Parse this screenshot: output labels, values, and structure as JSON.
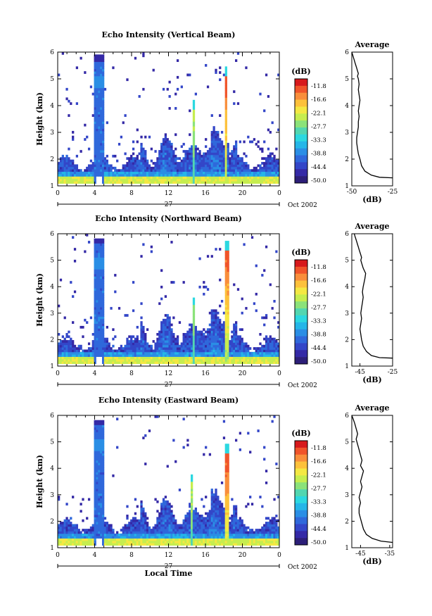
{
  "colorbar": {
    "unit": "(dB)",
    "labels": [
      "-11.8",
      "-16.6",
      "-22.1",
      "-27.7",
      "-33.3",
      "-38.8",
      "-44.4",
      "-50.0"
    ],
    "colors": [
      "#d7191c",
      "#f0542a",
      "#f98e3b",
      "#fdc13b",
      "#f4e843",
      "#c6ed4f",
      "#8be27a",
      "#52d6b0",
      "#2cd8e0",
      "#24b6e8",
      "#2a8ee5",
      "#2f68db",
      "#3346c8",
      "#3429a6",
      "#2c1e78"
    ]
  },
  "chart_data": [
    {
      "type": "heatmap",
      "title": "Echo Intensity (Vertical Beam)",
      "ylabel": "Height (km)",
      "xlabel": "",
      "xticks": [
        "0",
        "4",
        "8",
        "12",
        "16",
        "20",
        "0"
      ],
      "xlim": [
        0,
        24
      ],
      "yticks": [
        "1",
        "2",
        "3",
        "4",
        "5",
        "6"
      ],
      "ylim": [
        1,
        6
      ],
      "date_day": "27",
      "date_label": "Oct 2002",
      "colorbar_range": [
        -50.0,
        -11.8
      ]
    },
    {
      "type": "line",
      "title": "Average",
      "xlabel": "(dB)",
      "xticks": [
        "-50",
        "-25"
      ],
      "xlim": [
        -50,
        -25
      ],
      "yticks": [
        "1",
        "2",
        "3",
        "4",
        "5",
        "6"
      ],
      "ylim": [
        1,
        6
      ],
      "x": [
        -25,
        -33,
        -38,
        -42,
        -44,
        -45,
        -46,
        -46.5,
        -47,
        -47,
        -46.5,
        -46,
        -46,
        -45.5,
        -46,
        -45.5,
        -45,
        -45.5,
        -46,
        -45.5,
        -46,
        -46.5,
        -46,
        -46.5,
        -47,
        -47.5,
        -48,
        -48.5,
        -49,
        -49.5,
        -50
      ],
      "y": [
        1.3,
        1.32,
        1.4,
        1.55,
        1.75,
        2.0,
        2.2,
        2.4,
        2.6,
        2.8,
        3.0,
        3.2,
        3.4,
        3.6,
        3.8,
        4.0,
        4.2,
        4.4,
        4.6,
        4.8,
        5.0,
        5.1,
        5.2,
        5.3,
        5.4,
        5.5,
        5.6,
        5.7,
        5.8,
        5.9,
        6.0
      ]
    },
    {
      "type": "heatmap",
      "title": "Echo Intensity (Northward Beam)",
      "ylabel": "Height (km)",
      "xlabel": "",
      "xticks": [
        "0",
        "4",
        "8",
        "12",
        "16",
        "20",
        "0"
      ],
      "xlim": [
        0,
        24
      ],
      "yticks": [
        "1",
        "2",
        "3",
        "4",
        "5",
        "6"
      ],
      "ylim": [
        1,
        6
      ],
      "date_day": "27",
      "date_label": "Oct 2002",
      "colorbar_range": [
        -50.0,
        -11.8
      ]
    },
    {
      "type": "line",
      "title": "Average",
      "xlabel": "(dB)",
      "xticks": [
        "-45",
        "-25"
      ],
      "xlim": [
        -50,
        -25
      ],
      "yticks": [
        "1",
        "2",
        "3",
        "4",
        "5",
        "6"
      ],
      "ylim": [
        1,
        6
      ],
      "x": [
        -25,
        -33,
        -38,
        -41,
        -43,
        -44,
        -44.5,
        -45,
        -44.5,
        -44,
        -44.5,
        -44,
        -43.5,
        -43,
        -43.5,
        -43,
        -42,
        -41.5,
        -43,
        -44,
        -44.5,
        -44,
        -44.5,
        -45,
        -45.5,
        -46,
        -46.5,
        -47,
        -47.5,
        -48,
        -48.5
      ],
      "y": [
        1.3,
        1.32,
        1.4,
        1.55,
        1.75,
        2.0,
        2.2,
        2.4,
        2.6,
        2.8,
        3.0,
        3.2,
        3.4,
        3.6,
        3.8,
        4.0,
        4.3,
        4.5,
        4.7,
        4.9,
        5.0,
        5.1,
        5.2,
        5.3,
        5.4,
        5.5,
        5.6,
        5.7,
        5.8,
        5.9,
        6.0
      ]
    },
    {
      "type": "heatmap",
      "title": "Echo Intensity (Eastward Beam)",
      "ylabel": "Height (km)",
      "xlabel": "Local Time",
      "xticks": [
        "0",
        "4",
        "8",
        "12",
        "16",
        "20",
        "0"
      ],
      "xlim": [
        0,
        24
      ],
      "yticks": [
        "1",
        "2",
        "3",
        "4",
        "5",
        "6"
      ],
      "ylim": [
        1,
        6
      ],
      "date_day": "27",
      "date_label": "Oct 2002",
      "colorbar_range": [
        -50.0,
        -11.8
      ]
    },
    {
      "type": "line",
      "title": "Average",
      "xlabel": "(dB)",
      "xticks": [
        "-45",
        "-35"
      ],
      "xlim": [
        -48,
        -34
      ],
      "yticks": [
        "1",
        "2",
        "3",
        "4",
        "5",
        "6"
      ],
      "ylim": [
        1,
        6
      ],
      "x": [
        -34,
        -38,
        -41,
        -43,
        -44,
        -44.5,
        -45,
        -45.5,
        -45.5,
        -45,
        -45.5,
        -45,
        -44.5,
        -45,
        -44.5,
        -44,
        -45,
        -44.5,
        -45,
        -45.5,
        -46,
        -46.5,
        -46,
        -46.5,
        -47,
        -47.5,
        -48
      ],
      "y": [
        1.2,
        1.25,
        1.35,
        1.5,
        1.7,
        1.9,
        2.1,
        2.3,
        2.5,
        2.7,
        2.9,
        3.1,
        3.3,
        3.5,
        3.7,
        3.9,
        4.1,
        4.3,
        4.5,
        4.7,
        4.9,
        5.1,
        5.3,
        5.5,
        5.7,
        5.85,
        6.0
      ]
    }
  ]
}
